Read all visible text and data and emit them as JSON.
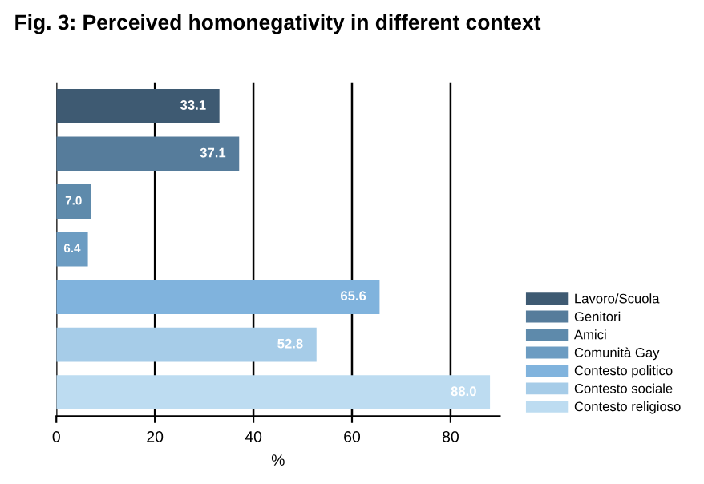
{
  "chart_data": {
    "type": "bar",
    "orientation": "horizontal",
    "title": "Fig. 3: Perceived homonegativity in different context",
    "xlabel": "%",
    "categories": [
      null,
      null,
      null,
      null,
      null,
      null,
      null
    ],
    "series": [
      {
        "name": "Lavoro/Scuola",
        "color": "#3e5a72",
        "values": [
          33.1,
          null,
          null,
          null,
          null,
          null,
          null
        ],
        "value_labels": [
          "33.1",
          null,
          null,
          null,
          null,
          null,
          null
        ]
      },
      {
        "name": "Genitori",
        "color": "#567c9b",
        "values": [
          null,
          37.1,
          null,
          null,
          null,
          null,
          null
        ],
        "value_labels": [
          null,
          "37.1",
          null,
          null,
          null,
          null,
          null
        ]
      },
      {
        "name": "Amici",
        "color": "#5e8aab",
        "values": [
          null,
          null,
          7.0,
          null,
          null,
          null,
          null
        ],
        "value_labels": [
          null,
          null,
          "7.0",
          null,
          null,
          null,
          null
        ]
      },
      {
        "name": "Comunità Gay",
        "color": "#6c9cc2",
        "values": [
          null,
          null,
          null,
          6.4,
          null,
          null,
          null
        ],
        "value_labels": [
          null,
          null,
          null,
          "6.4",
          null,
          null,
          null
        ]
      },
      {
        "name": "Contesto politico",
        "color": "#80b3dd",
        "values": [
          null,
          null,
          null,
          null,
          65.6,
          null,
          null
        ],
        "value_labels": [
          null,
          null,
          null,
          null,
          "65.6",
          null,
          null
        ]
      },
      {
        "name": "Contesto sociale",
        "color": "#a6cce8",
        "values": [
          null,
          null,
          null,
          null,
          null,
          52.8,
          null
        ],
        "value_labels": [
          null,
          null,
          null,
          null,
          null,
          "52.8",
          null
        ]
      },
      {
        "name": "Contesto religioso",
        "color": "#bddcf1",
        "values": [
          null,
          null,
          null,
          null,
          null,
          null,
          88.0
        ],
        "value_labels": [
          null,
          null,
          null,
          null,
          null,
          null,
          "88.0"
        ]
      }
    ],
    "xlim": [
      0,
      90
    ],
    "xticks": [
      0,
      20,
      40,
      60,
      80
    ],
    "grid": "x",
    "legend": "right"
  }
}
